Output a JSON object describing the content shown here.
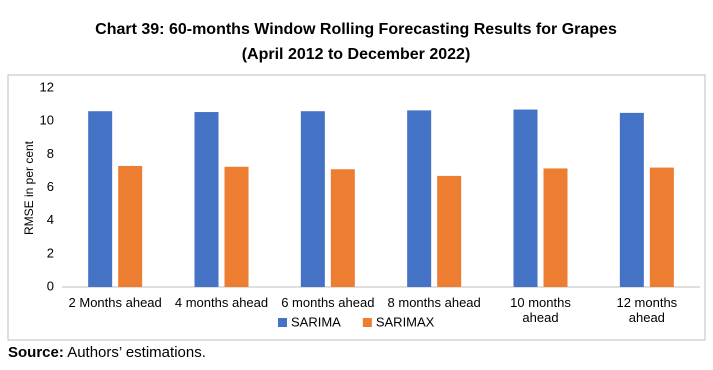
{
  "chart_data": {
    "type": "bar",
    "title": "Chart 39: 60-months Window Rolling Forecasting Results for Grapes",
    "subtitle": "(April 2012 to December 2022)",
    "y_label": "RMSE in per cent",
    "categories": [
      "2 Months ahead",
      "4 months ahead",
      "6 months ahead",
      "8 months ahead",
      "10 months ahead",
      "12 months ahead"
    ],
    "series": [
      {
        "name": "SARIMA",
        "color": "#4472c4",
        "values": [
          10.6,
          10.55,
          10.6,
          10.65,
          10.7,
          10.5
        ]
      },
      {
        "name": "SARIMAX",
        "color": "#ed7d31",
        "values": [
          7.3,
          7.25,
          7.1,
          6.7,
          7.15,
          7.2
        ]
      }
    ],
    "ylim": [
      0,
      12
    ],
    "yticks": [
      0,
      2,
      4,
      6,
      8,
      10,
      12
    ],
    "grid": false,
    "legend": "bottom"
  },
  "source": {
    "label": "Source:",
    "text": "Authors’ estimations."
  }
}
